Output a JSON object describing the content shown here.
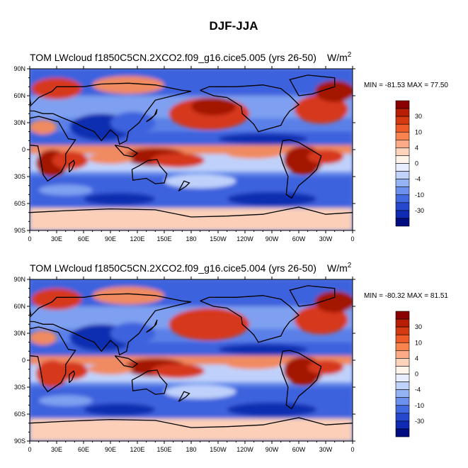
{
  "figure": {
    "title": "DJF-JJA"
  },
  "panels": [
    {
      "title": "TOM LWcloud f1850C5CN.2XCO2.f09_g16.cice5.005 (yrs 26-50)",
      "units_base": "W/m",
      "units_exp": "2",
      "stats": "MIN = -81.53 MAX =  77.50"
    },
    {
      "title": "TOM LWcloud f1850C5CN.2XCO2.f09_g16.cice5.004 (yrs 26-50)",
      "units_base": "W/m",
      "units_exp": "2",
      "stats": "MIN = -80.32 MAX =  81.51"
    }
  ],
  "axes": {
    "lat_ticks": [
      "90N",
      "60N",
      "30N",
      "0",
      "30S",
      "60S",
      "90S"
    ],
    "lon_ticks": [
      "0",
      "30E",
      "60E",
      "90E",
      "120E",
      "150E",
      "180",
      "150W",
      "120W",
      "90W",
      "60W",
      "30W",
      "0"
    ]
  },
  "colorbar": {
    "labels": [
      "30",
      "10",
      "4",
      "0",
      "-4",
      "-10",
      "-30"
    ],
    "colors": [
      "#8b0000",
      "#b81d06",
      "#d63a12",
      "#ee5a28",
      "#f9834f",
      "#fcab86",
      "#fdd3bc",
      "#fff3ea",
      "#e6eeff",
      "#bed2fb",
      "#93b3f5",
      "#6b90ee",
      "#4169e1",
      "#2548cf",
      "#0f2ab5",
      "#000c80"
    ]
  },
  "map_colors": {
    "strong_pos": "#a31800",
    "pos": "#d6371a",
    "weak_pos": "#f08a60",
    "faint_pos": "#fcd0b8",
    "neutral": "#f3f0f8",
    "faint_neg": "#bfd1fb",
    "weak_neg": "#7fa0f0",
    "neg": "#3d62dd",
    "strong_neg": "#102db0"
  }
}
